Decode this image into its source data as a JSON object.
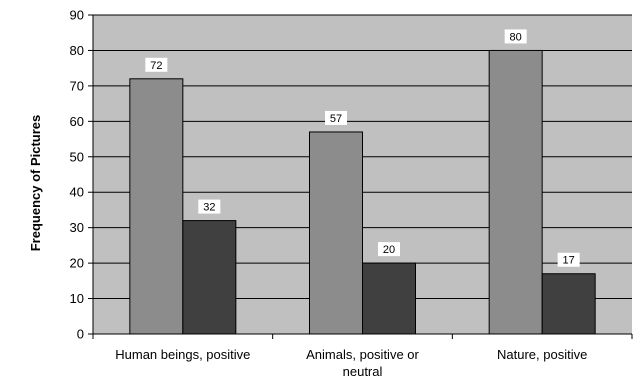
{
  "chart_data": {
    "type": "bar",
    "ylabel": "Frequency of Pictures",
    "xlabel": "",
    "ylim": [
      0,
      90
    ],
    "yticks": [
      0,
      10,
      20,
      30,
      40,
      50,
      60,
      70,
      80,
      90
    ],
    "grid": true,
    "legend": "none",
    "categories": [
      [
        "Human beings, positive"
      ],
      [
        "Animals, positive or",
        "neutral"
      ],
      [
        "Nature, positive"
      ]
    ],
    "series": [
      {
        "values": [
          72,
          57,
          80
        ],
        "color": "#8c8c8c"
      },
      {
        "values": [
          32,
          20,
          17
        ],
        "color": "#404040"
      }
    ],
    "plot_background": "#c0c0c0"
  }
}
